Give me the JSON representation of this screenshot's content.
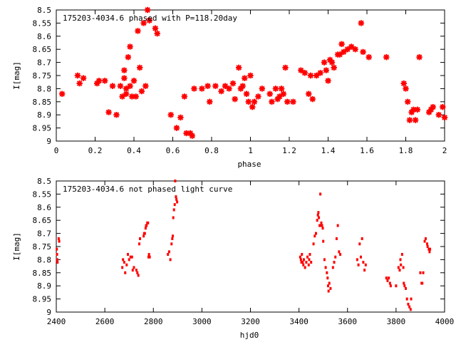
{
  "chart_data": [
    {
      "type": "scatter",
      "title": "175203-4034.6 phased with P=118.20day",
      "xlabel": "phase",
      "ylabel": "I[mag]",
      "xlim": [
        0,
        2
      ],
      "ylim": [
        8.5,
        9
      ],
      "y_inverted": true,
      "x_ticks": [
        "0",
        "0.2",
        "0.4",
        "0.6",
        "0.8",
        "1",
        "1.2",
        "1.4",
        "1.6",
        "1.8",
        "2"
      ],
      "y_ticks": [
        "8.5",
        "8.55",
        "8.6",
        "8.65",
        "8.7",
        "8.75",
        "8.8",
        "8.85",
        "8.9",
        "8.95",
        "9"
      ],
      "marker": "star",
      "color": "#ff0000",
      "x": [
        0.03,
        0.11,
        0.12,
        0.14,
        0.21,
        0.22,
        0.25,
        0.27,
        0.29,
        0.31,
        0.33,
        0.34,
        0.35,
        0.35,
        0.36,
        0.36,
        0.37,
        0.38,
        0.38,
        0.39,
        0.4,
        0.41,
        0.42,
        0.43,
        0.44,
        0.45,
        0.46,
        0.47,
        0.48,
        0.51,
        0.52,
        0.59,
        0.62,
        0.64,
        0.66,
        0.67,
        0.69,
        0.7,
        0.71,
        0.75,
        0.78,
        0.79,
        0.82,
        0.85,
        0.87,
        0.89,
        0.91,
        0.92,
        0.94,
        0.95,
        0.96,
        0.97,
        0.98,
        0.99,
        1.0,
        1.01,
        1.02,
        1.04,
        1.06,
        1.1,
        1.11,
        1.13,
        1.14,
        1.15,
        1.16,
        1.17,
        1.18,
        1.19,
        1.22,
        1.26,
        1.28,
        1.3,
        1.31,
        1.32,
        1.34,
        1.36,
        1.38,
        1.39,
        1.4,
        1.41,
        1.42,
        1.43,
        1.45,
        1.46,
        1.47,
        1.48,
        1.5,
        1.52,
        1.54,
        1.57,
        1.58,
        1.61,
        1.7,
        1.79,
        1.8,
        1.81,
        1.82,
        1.83,
        1.84,
        1.85,
        1.86,
        1.87,
        1.92,
        1.93,
        1.94,
        1.97,
        1.99,
        2.0
      ],
      "y": [
        8.82,
        8.75,
        8.78,
        8.76,
        8.78,
        8.77,
        8.77,
        8.89,
        8.79,
        8.9,
        8.79,
        8.83,
        8.73,
        8.76,
        8.8,
        8.82,
        8.68,
        8.64,
        8.79,
        8.83,
        8.77,
        8.83,
        8.58,
        8.72,
        8.81,
        8.55,
        8.79,
        8.5,
        8.54,
        8.57,
        8.59,
        8.9,
        8.95,
        8.91,
        8.83,
        8.97,
        8.97,
        8.98,
        8.8,
        8.8,
        8.79,
        8.85,
        8.79,
        8.81,
        8.79,
        8.8,
        8.78,
        8.84,
        8.72,
        8.8,
        8.79,
        8.76,
        8.82,
        8.85,
        8.75,
        8.87,
        8.85,
        8.83,
        8.8,
        8.82,
        8.85,
        8.8,
        8.84,
        8.83,
        8.8,
        8.82,
        8.72,
        8.85,
        8.85,
        8.73,
        8.74,
        8.82,
        8.75,
        8.84,
        8.75,
        8.74,
        8.7,
        8.73,
        8.77,
        8.69,
        8.7,
        8.72,
        8.67,
        8.67,
        8.63,
        8.66,
        8.65,
        8.64,
        8.65,
        8.55,
        8.66,
        8.68,
        8.68,
        8.78,
        8.8,
        8.85,
        8.92,
        8.89,
        8.88,
        8.92,
        8.88,
        8.68,
        8.89,
        8.88,
        8.87,
        8.9,
        8.87,
        8.91
      ]
    },
    {
      "type": "scatter",
      "title": "175203-4034.6 not phased light curve",
      "xlabel": "hjd0",
      "ylabel": "I[mag]",
      "xlim": [
        2400,
        4000
      ],
      "ylim": [
        8.5,
        9
      ],
      "y_inverted": true,
      "x_ticks": [
        "2400",
        "2600",
        "2800",
        "3000",
        "3200",
        "3400",
        "3600",
        "3800",
        "4000"
      ],
      "y_ticks": [
        "8.5",
        "8.55",
        "8.6",
        "8.65",
        "8.7",
        "8.75",
        "8.8",
        "8.85",
        "8.9",
        "8.95",
        "9"
      ],
      "marker": "dot",
      "color": "#ff0000",
      "x": [
        2402,
        2403,
        2404,
        2405,
        2410,
        2412,
        2672,
        2675,
        2680,
        2684,
        2690,
        2695,
        2700,
        2706,
        2712,
        2715,
        2720,
        2730,
        2734,
        2738,
        2742,
        2745,
        2760,
        2762,
        2765,
        2768,
        2770,
        2772,
        2775,
        2778,
        2780,
        2782,
        2785,
        2860,
        2865,
        2870,
        2875,
        2878,
        2880,
        2882,
        2885,
        2888,
        2890,
        2893,
        2895,
        2898,
        3405,
        3408,
        3410,
        3412,
        3415,
        3418,
        3420,
        3425,
        3430,
        3435,
        3440,
        3442,
        3445,
        3450,
        3460,
        3465,
        3470,
        3475,
        3478,
        3480,
        3482,
        3485,
        3488,
        3490,
        3492,
        3495,
        3498,
        3500,
        3505,
        3510,
        3515,
        3518,
        3520,
        3522,
        3525,
        3530,
        3540,
        3545,
        3550,
        3555,
        3560,
        3565,
        3570,
        3640,
        3645,
        3650,
        3655,
        3660,
        3665,
        3670,
        3675,
        3760,
        3765,
        3770,
        3775,
        3778,
        3800,
        3810,
        3815,
        3818,
        3820,
        3825,
        3830,
        3832,
        3835,
        3840,
        3845,
        3850,
        3855,
        3860,
        3862,
        3900,
        3905,
        3908,
        3912,
        3918,
        3922,
        3928,
        3930,
        3935,
        3938,
        3940
      ],
      "y": [
        8.76,
        8.78,
        8.8,
        8.81,
        8.72,
        8.73,
        8.83,
        8.8,
        8.81,
        8.85,
        8.82,
        8.78,
        8.8,
        8.79,
        8.79,
        8.84,
        8.83,
        8.84,
        8.85,
        8.86,
        8.74,
        8.72,
        8.71,
        8.7,
        8.7,
        8.68,
        8.67,
        8.67,
        8.66,
        8.66,
        8.79,
        8.78,
        8.79,
        8.78,
        8.77,
        8.8,
        8.74,
        8.72,
        8.71,
        8.64,
        8.61,
        8.59,
        8.5,
        8.56,
        8.57,
        8.58,
        8.79,
        8.8,
        8.81,
        8.78,
        8.81,
        8.82,
        8.8,
        8.83,
        8.81,
        8.79,
        8.82,
        8.8,
        8.78,
        8.81,
        8.74,
        8.71,
        8.7,
        8.65,
        8.63,
        8.62,
        8.64,
        8.67,
        8.55,
        8.67,
        8.66,
        8.67,
        8.68,
        8.73,
        8.8,
        8.83,
        8.85,
        8.87,
        8.9,
        8.92,
        8.89,
        8.91,
        8.83,
        8.81,
        8.79,
        8.72,
        8.67,
        8.77,
        8.78,
        8.8,
        8.82,
        8.74,
        8.79,
        8.72,
        8.81,
        8.84,
        8.82,
        8.87,
        8.88,
        8.87,
        8.89,
        8.9,
        8.9,
        8.83,
        8.84,
        8.8,
        8.82,
        8.78,
        8.83,
        8.89,
        8.9,
        8.91,
        8.95,
        8.97,
        8.98,
        8.99,
        8.95,
        8.85,
        8.89,
        8.89,
        8.85,
        8.73,
        8.72,
        8.74,
        8.75,
        8.76,
        8.77,
        8.76
      ]
    }
  ]
}
